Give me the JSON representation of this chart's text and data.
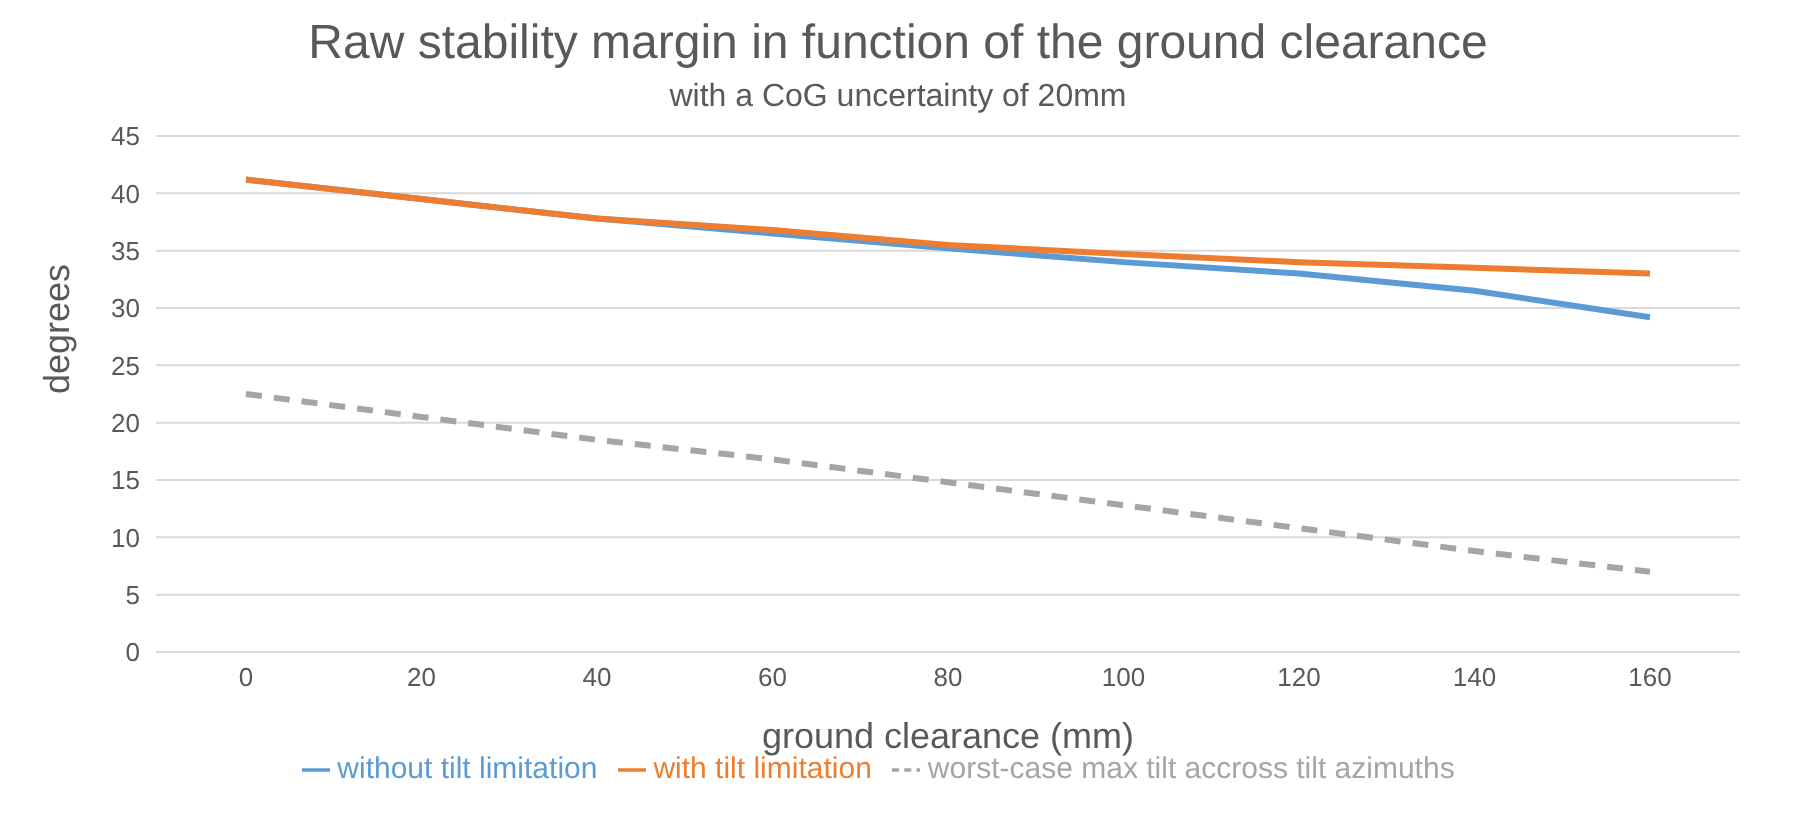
{
  "chart_data": {
    "type": "line",
    "title": "Raw stability margin in function of the ground clearance",
    "subtitle": "with a CoG uncertainty of 20mm",
    "xlabel": "ground clearance (mm)",
    "ylabel": "degrees",
    "categories": [
      "0",
      "20",
      "40",
      "60",
      "80",
      "100",
      "120",
      "140",
      "160"
    ],
    "series": [
      {
        "name": "without tilt limitation",
        "color": "#5b9bd5",
        "values": [
          41.2,
          39.5,
          37.8,
          36.5,
          35.2,
          34,
          33,
          31.5,
          29.2
        ]
      },
      {
        "name": "with tilt limitation",
        "color": "#ed7d31",
        "values": [
          41.2,
          39.5,
          37.8,
          36.8,
          35.5,
          34.7,
          34,
          33.5,
          33
        ]
      },
      {
        "name": "worst-case max tilt accross tilt azimuths",
        "color": "#a5a5a5",
        "line_style": "dashed",
        "values": [
          22.5,
          20.5,
          18.5,
          16.8,
          14.8,
          12.8,
          10.8,
          8.8,
          7
        ]
      }
    ],
    "ylim": [
      0,
      45
    ],
    "yticks": [
      0,
      5,
      10,
      15,
      20,
      25,
      30,
      35,
      40,
      45
    ],
    "grid": "y",
    "legend": "bottom",
    "marker": "none"
  }
}
